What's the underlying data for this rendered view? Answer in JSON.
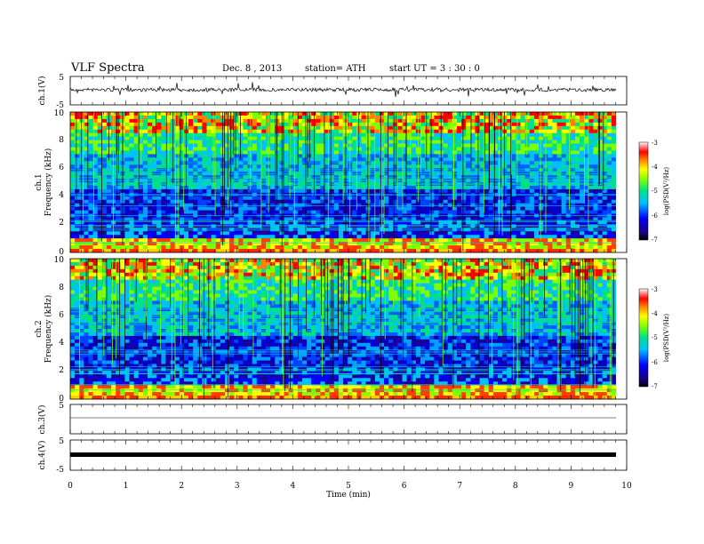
{
  "header": {
    "title": "VLF  Spectra",
    "date": "Dec. 8  , 2013",
    "station": "station= ATH",
    "start": "start  UT  =   3  : 30 : 0"
  },
  "chart_data": [
    {
      "type": "line",
      "panel": "ch1-waveform",
      "ylabel": "ch.1(V)",
      "ylim": [
        -5,
        5
      ],
      "yticks": [
        "5",
        "-5"
      ]
    },
    {
      "type": "heatmap",
      "panel": "ch1-spectrogram",
      "ylabel_top": "ch.1",
      "ylabel": "Frequency  (kHz)",
      "ylim": [
        0,
        10
      ],
      "yticks": [
        "0",
        "2",
        "4",
        "6",
        "8",
        "10"
      ],
      "colorbar": {
        "label": "log(PSD(V²/Hz)",
        "range": [
          -7,
          -3
        ],
        "ticks": [
          "-3",
          "-4",
          "-5",
          "-6",
          "-7"
        ]
      }
    },
    {
      "type": "heatmap",
      "panel": "ch2-spectrogram",
      "ylabel_top": "ch.2",
      "ylabel": "Frequency  (kHz)",
      "ylim": [
        0,
        10
      ],
      "yticks": [
        "0",
        "2",
        "4",
        "6",
        "8",
        "10"
      ],
      "colorbar": {
        "label": "log(PSD(V²/Hz)",
        "range": [
          -7,
          -3
        ],
        "ticks": [
          "-3",
          "-4",
          "-5",
          "-6",
          "-7"
        ]
      }
    },
    {
      "type": "line",
      "panel": "ch3-waveform",
      "ylabel": "ch.3(V)",
      "ylim": [
        -5,
        5
      ],
      "yticks": [
        "5"
      ]
    },
    {
      "type": "line",
      "panel": "ch4-waveform",
      "ylabel": "ch.4(V)",
      "ylim": [
        -5,
        5
      ],
      "yticks": [
        "5",
        "-5"
      ]
    }
  ],
  "xaxis": {
    "label": "Time  (min)",
    "xlim": [
      0,
      10
    ],
    "ticks": [
      "0",
      "1",
      "2",
      "3",
      "4",
      "5",
      "6",
      "7",
      "8",
      "9",
      "10"
    ]
  }
}
